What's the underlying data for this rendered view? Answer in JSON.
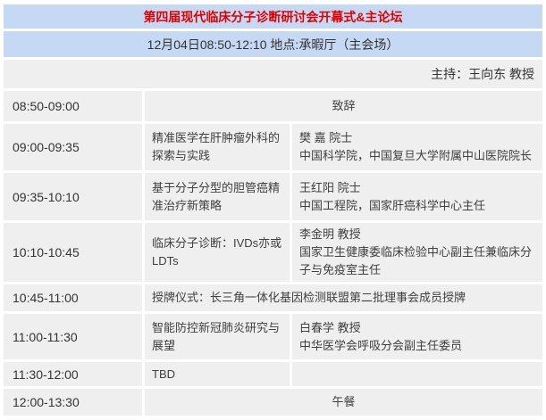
{
  "colors": {
    "header_bg": "#c6d9f4",
    "title_text": "#e00000",
    "cell_bg": "#efefef",
    "body_text": "#3f3f3f"
  },
  "header": {
    "title": "第四届现代临床分子诊断研讨会开幕式&主论坛",
    "datetime_location": "12月04日08:50-12:10  地点:承暇厅（主会场）",
    "moderator": "主持：王向东 教授"
  },
  "schedule": {
    "rows": [
      {
        "time": "08:50-09:00",
        "event": "致辞"
      },
      {
        "time": "09:00-09:35",
        "topic": "精准医学在肝肿瘤外科的探索与实践",
        "speaker_name": "樊 嘉 院士",
        "speaker_title": "中国科学院，中国复旦大学附属中山医院院长"
      },
      {
        "time": "09:35-10:10",
        "topic": "基于分子分型的胆管癌精准治疗新策略",
        "speaker_name": "王红阳 院士",
        "speaker_title": "中国工程院，国家肝癌科学中心主任"
      },
      {
        "time": "10:10-10:45",
        "topic": "临床分子诊断：IVDs亦或LDTs",
        "speaker_name": "李金明 教授",
        "speaker_title": "国家卫生健康委临床检验中心副主任兼临床分子与免疫室主任"
      },
      {
        "time": "10:45-11:00",
        "event": "授牌仪式：长三角一体化基因检测联盟第二批理事会成员授牌"
      },
      {
        "time": "11:00-11:30",
        "topic": "智能防控新冠肺炎研究与展望",
        "speaker_name": "白春学 教授",
        "speaker_title": "中华医学会呼吸分会副主任委员"
      },
      {
        "time": "11:30-12:00",
        "topic": "TBD",
        "speaker_name": "",
        "speaker_title": ""
      },
      {
        "time": "12:00-13:30",
        "event": "午餐"
      }
    ]
  }
}
